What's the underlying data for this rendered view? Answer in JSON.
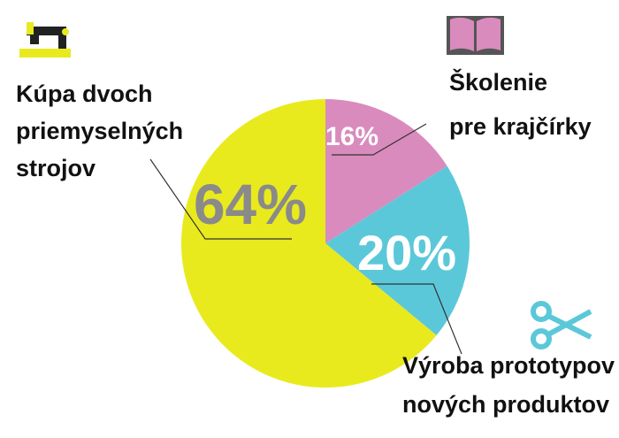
{
  "chart_data": {
    "type": "pie",
    "categories": [
      [
        "Školenie",
        "pre krajčírky"
      ],
      [
        "Výroba prototypov",
        "nových produktov"
      ],
      [
        "Kúpa dvoch",
        "priemyselných",
        "strojov"
      ]
    ],
    "values": [
      16,
      20,
      64
    ],
    "value_labels": [
      "16%",
      "20%",
      "64%"
    ],
    "colors": [
      "#d98bbd",
      "#5bc8d9",
      "#e8ea1e"
    ]
  }
}
